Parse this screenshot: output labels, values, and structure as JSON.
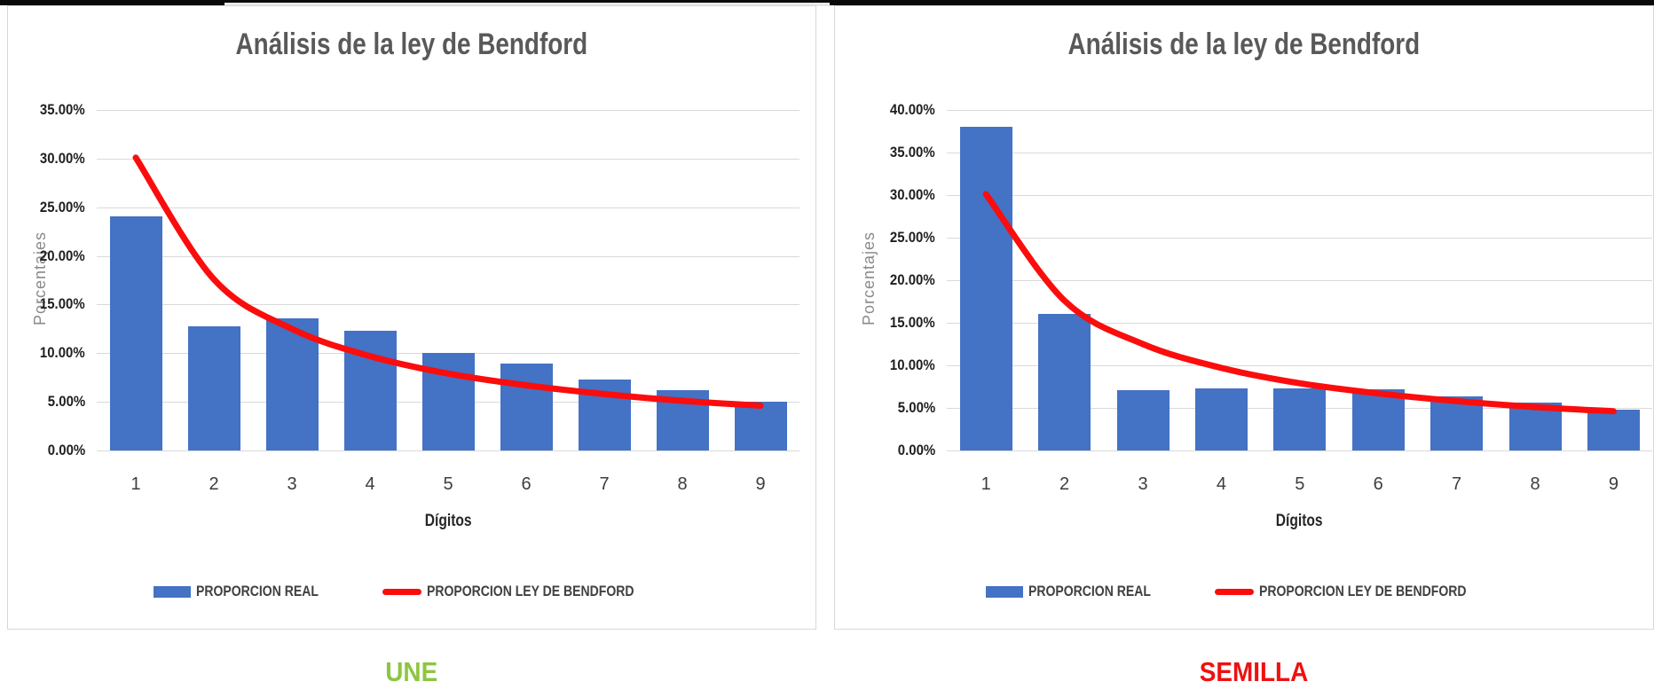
{
  "page": {
    "top_bar_color": "#0a0a0a",
    "top_bar_inner_color": "#e9e9e9",
    "background_color": "#ffffff",
    "gridline_color": "#d9d9d9"
  },
  "chart_data": [
    {
      "type": "bar",
      "title": "Análisis de la ley de Bendford",
      "xlabel": "Dígitos",
      "ylabel": "Porcentajes",
      "caption": {
        "text": "UNE",
        "color": "#8CC63E"
      },
      "categories": [
        "1",
        "2",
        "3",
        "4",
        "5",
        "6",
        "7",
        "8",
        "9"
      ],
      "y_ticks": [
        "35.00%",
        "30.00%",
        "25.00%",
        "20.00%",
        "15.00%",
        "10.00%",
        "5.00%",
        "0.00%"
      ],
      "ylim": [
        0,
        35
      ],
      "grid": true,
      "legend_position": "bottom",
      "series": [
        {
          "name": "PROPORCION REAL",
          "type": "bar",
          "color": "#4472C4",
          "values": [
            24.1,
            12.8,
            13.6,
            12.3,
            10.0,
            8.9,
            7.3,
            6.2,
            5.0
          ]
        },
        {
          "name": "PROPORCION LEY DE BENDFORD",
          "type": "line",
          "color": "#FB0D0D",
          "values": [
            30.1,
            17.6,
            12.5,
            9.7,
            7.9,
            6.7,
            5.8,
            5.1,
            4.6
          ]
        }
      ]
    },
    {
      "type": "bar",
      "title": "Análisis de la ley de Bendford",
      "xlabel": "Dígitos",
      "ylabel": "Porcentajes",
      "caption": {
        "text": "SEMILLA",
        "color": "#EE1111"
      },
      "categories": [
        "1",
        "2",
        "3",
        "4",
        "5",
        "6",
        "7",
        "8",
        "9"
      ],
      "y_ticks": [
        "40.00%",
        "35.00%",
        "30.00%",
        "25.00%",
        "20.00%",
        "15.00%",
        "10.00%",
        "5.00%",
        "0.00%"
      ],
      "ylim": [
        0,
        40
      ],
      "grid": true,
      "legend_position": "bottom",
      "series": [
        {
          "name": "PROPORCION REAL",
          "type": "bar",
          "color": "#4472C4",
          "values": [
            38.0,
            16.0,
            7.1,
            7.3,
            7.3,
            7.2,
            6.4,
            5.6,
            4.8
          ]
        },
        {
          "name": "PROPORCION LEY DE BENDFORD",
          "type": "line",
          "color": "#FB0D0D",
          "values": [
            30.1,
            17.6,
            12.5,
            9.7,
            7.9,
            6.7,
            5.8,
            5.1,
            4.6
          ]
        }
      ]
    }
  ]
}
